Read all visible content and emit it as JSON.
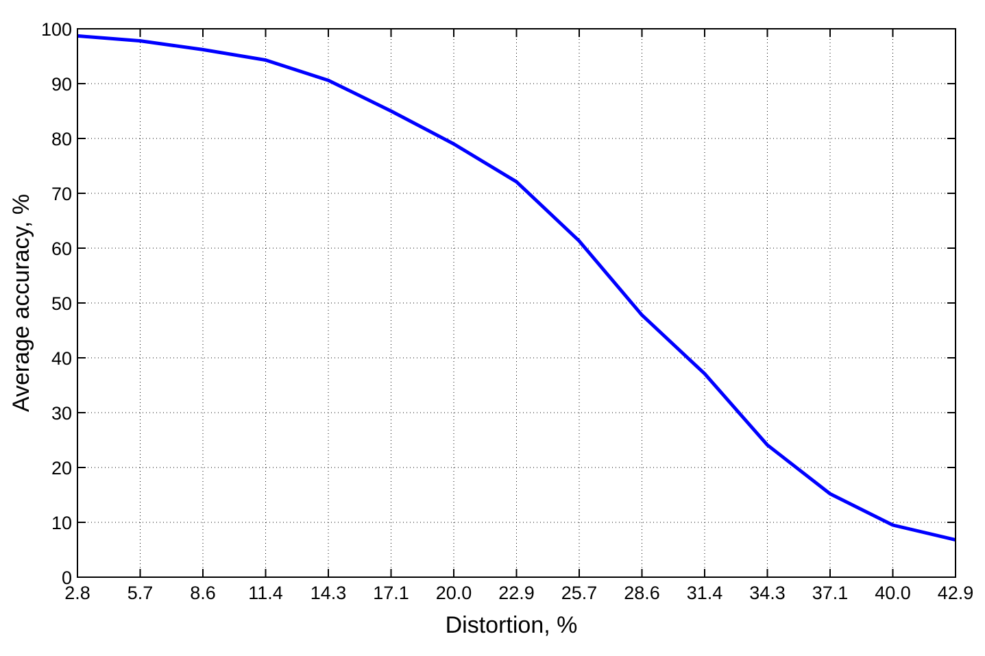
{
  "chart_data": {
    "type": "line",
    "title": "",
    "xlabel": "Distortion, %",
    "ylabel": "Average accuracy, %",
    "categories": [
      "2.8",
      "5.7",
      "8.6",
      "11.4",
      "14.3",
      "17.1",
      "20.0",
      "22.9",
      "25.7",
      "28.6",
      "31.4",
      "34.3",
      "37.1",
      "40.0",
      "42.9"
    ],
    "x": [
      2.8,
      5.7,
      8.6,
      11.4,
      14.3,
      17.1,
      20.0,
      22.9,
      25.7,
      28.6,
      31.4,
      34.3,
      37.1,
      40.0,
      42.9
    ],
    "series": [
      {
        "values": [
          98.7,
          97.8,
          96.2,
          94.3,
          90.6,
          85.0,
          79.0,
          72.1,
          61.3,
          47.8,
          37.1,
          24.1,
          15.2,
          9.5,
          6.8
        ],
        "color": "#0000ff"
      }
    ],
    "xlim": [
      2.8,
      42.9
    ],
    "ylim": [
      0,
      100
    ],
    "yticks": [
      "0",
      "10",
      "20",
      "30",
      "40",
      "50",
      "60",
      "70",
      "80",
      "90",
      "100"
    ],
    "grid": true,
    "grid_style": "dotted"
  }
}
